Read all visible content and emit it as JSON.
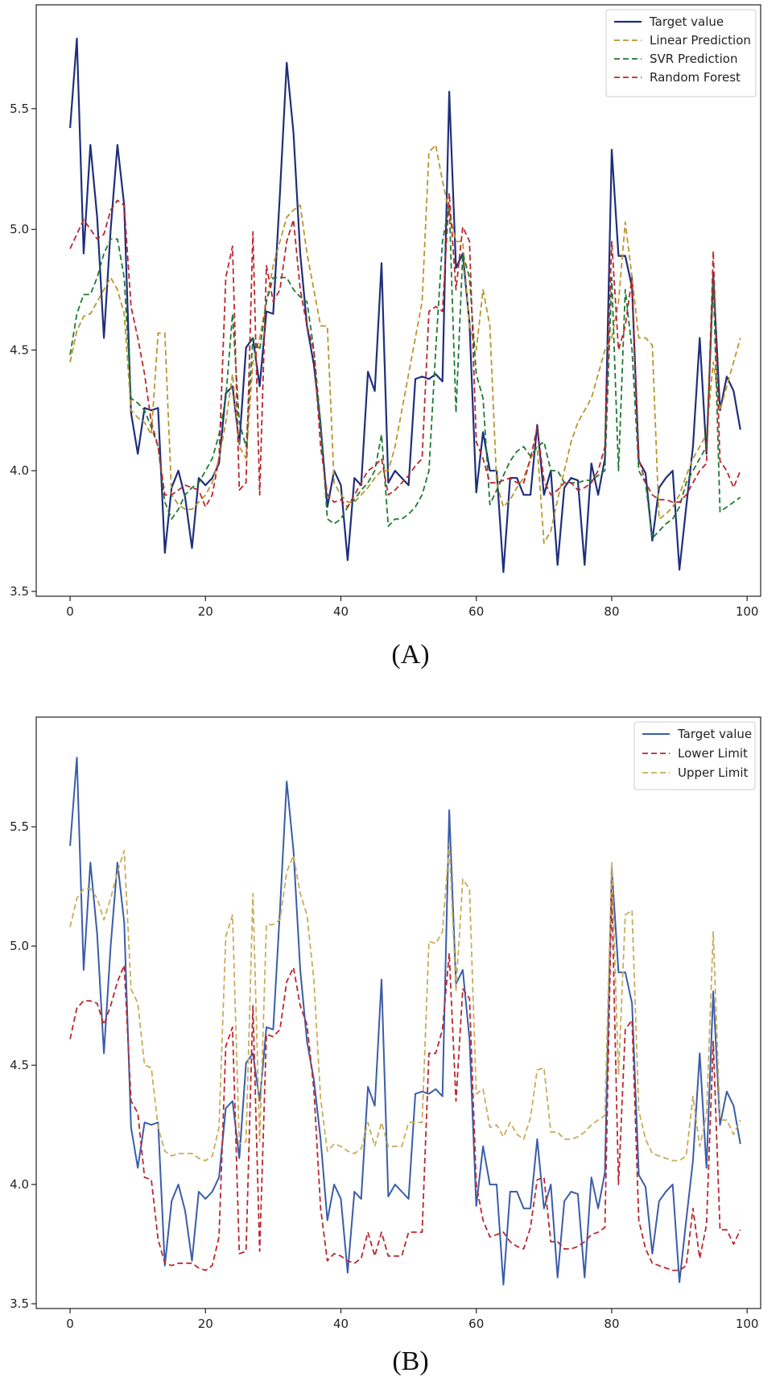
{
  "chart_data": [
    {
      "type": "line",
      "caption": "(A)",
      "xlim": [
        -5,
        102
      ],
      "ylim": [
        3.48,
        5.93
      ],
      "x_ticks": [
        0,
        20,
        40,
        60,
        80,
        100
      ],
      "y_ticks": [
        3.5,
        4.0,
        4.5,
        5.0,
        5.5
      ],
      "x_tick_labels": [
        "0",
        "20",
        "40",
        "60",
        "80",
        "100"
      ],
      "y_tick_labels": [
        "3.5",
        "4.0",
        "4.5",
        "5.0",
        "5.5"
      ],
      "legend_position": "top-right",
      "series": [
        {
          "name": "Target value",
          "color": "#1f2f7a",
          "dash": "solid",
          "values": [
            5.42,
            5.79,
            4.9,
            5.35,
            5.05,
            4.55,
            5.0,
            5.35,
            5.1,
            4.24,
            4.07,
            4.26,
            4.25,
            4.26,
            3.66,
            3.93,
            4.0,
            3.89,
            3.68,
            3.97,
            3.94,
            3.97,
            4.03,
            4.32,
            4.35,
            4.11,
            4.51,
            4.55,
            4.35,
            4.66,
            4.65,
            5.15,
            5.69,
            5.4,
            4.9,
            4.6,
            4.44,
            4.19,
            3.85,
            4.0,
            3.94,
            3.63,
            3.97,
            3.94,
            4.41,
            4.33,
            4.86,
            3.95,
            4.0,
            3.97,
            3.94,
            4.38,
            4.39,
            4.38,
            4.4,
            4.37,
            5.57,
            4.84,
            4.9,
            4.61,
            3.91,
            4.16,
            4.0,
            4.0,
            3.58,
            3.97,
            3.97,
            3.9,
            3.9,
            4.19,
            3.9,
            4.0,
            3.61,
            3.93,
            3.97,
            3.96,
            3.61,
            4.03,
            3.9,
            4.05,
            5.33,
            4.89,
            4.89,
            4.76,
            4.04,
            3.99,
            3.71,
            3.93,
            3.97,
            4.0,
            3.59,
            3.85,
            4.1,
            4.55,
            4.07,
            4.81,
            4.25,
            4.39,
            4.33,
            4.17
          ]
        },
        {
          "name": "Linear Prediction",
          "color": "#b8962e",
          "dash": "dashed",
          "values": [
            4.45,
            4.58,
            4.64,
            4.65,
            4.7,
            4.75,
            4.8,
            4.75,
            4.65,
            4.25,
            4.22,
            4.2,
            4.15,
            4.57,
            4.57,
            3.9,
            3.86,
            3.84,
            3.84,
            3.87,
            3.9,
            3.95,
            4.05,
            4.2,
            4.4,
            4.1,
            4.05,
            4.45,
            4.55,
            4.7,
            4.85,
            4.95,
            5.05,
            5.08,
            5.1,
            4.9,
            4.75,
            4.6,
            4.6,
            3.95,
            3.9,
            3.87,
            3.87,
            3.9,
            3.93,
            3.97,
            4.0,
            4.0,
            4.1,
            4.25,
            4.4,
            4.55,
            4.7,
            5.32,
            5.35,
            5.2,
            5.07,
            4.95,
            4.95,
            4.6,
            4.5,
            4.75,
            4.6,
            3.95,
            3.85,
            3.88,
            3.93,
            3.97,
            4.05,
            4.1,
            3.7,
            3.75,
            3.88,
            4.0,
            4.12,
            4.2,
            4.25,
            4.3,
            4.4,
            4.5,
            4.55,
            4.7,
            5.03,
            4.8,
            4.55,
            4.55,
            4.52,
            3.8,
            3.82,
            3.85,
            3.9,
            3.98,
            4.05,
            4.1,
            4.15,
            4.45,
            4.25,
            4.35,
            4.45,
            4.55
          ]
        },
        {
          "name": "SVR Prediction",
          "color": "#1e7a32",
          "dash": "dashed",
          "values": [
            4.48,
            4.65,
            4.73,
            4.73,
            4.8,
            4.9,
            4.96,
            4.96,
            4.8,
            4.3,
            4.28,
            4.25,
            4.18,
            4.1,
            3.87,
            3.8,
            3.84,
            3.9,
            3.93,
            3.95,
            4.0,
            4.05,
            4.15,
            4.3,
            4.65,
            4.2,
            4.1,
            4.55,
            4.5,
            4.7,
            4.8,
            4.8,
            4.8,
            4.75,
            4.72,
            4.7,
            4.5,
            4.2,
            3.8,
            3.78,
            3.8,
            3.85,
            3.88,
            3.92,
            3.95,
            4.0,
            4.15,
            3.77,
            3.8,
            3.8,
            3.82,
            3.85,
            3.9,
            4.0,
            4.5,
            4.95,
            5.1,
            4.24,
            4.9,
            4.8,
            4.4,
            4.3,
            3.86,
            3.92,
            3.98,
            4.04,
            4.08,
            4.1,
            4.06,
            4.1,
            4.12,
            4.0,
            4.0,
            3.95,
            3.95,
            3.95,
            3.96,
            3.96,
            3.98,
            4.0,
            4.8,
            4.0,
            4.75,
            4.5,
            4.0,
            3.95,
            3.72,
            3.75,
            3.78,
            3.8,
            3.85,
            3.95,
            4.0,
            4.05,
            4.1,
            4.8,
            3.83,
            3.85,
            3.87,
            3.89
          ]
        },
        {
          "name": "Random Forest",
          "color": "#b8282e",
          "dash": "dashed",
          "values": [
            4.92,
            4.98,
            5.04,
            5.0,
            4.96,
            4.98,
            5.08,
            5.12,
            5.1,
            4.68,
            4.55,
            4.4,
            4.2,
            4.1,
            3.9,
            3.9,
            3.92,
            3.94,
            3.93,
            3.92,
            3.85,
            3.9,
            4.05,
            4.8,
            4.93,
            3.92,
            3.95,
            4.99,
            3.9,
            4.85,
            4.7,
            4.75,
            4.95,
            5.04,
            4.75,
            4.6,
            4.5,
            4.1,
            3.9,
            3.87,
            3.88,
            3.85,
            3.9,
            3.95,
            4.0,
            4.02,
            4.05,
            3.9,
            3.92,
            3.95,
            3.98,
            4.02,
            4.05,
            4.66,
            4.68,
            4.66,
            5.15,
            4.75,
            5.01,
            4.95,
            4.12,
            4.05,
            3.95,
            3.95,
            3.96,
            3.97,
            3.95,
            3.95,
            4.05,
            4.18,
            3.96,
            3.9,
            3.92,
            3.95,
            3.95,
            3.92,
            3.93,
            3.95,
            4.0,
            4.1,
            4.95,
            4.5,
            4.6,
            4.8,
            4.05,
            3.95,
            3.9,
            3.88,
            3.88,
            3.87,
            3.87,
            3.9,
            3.95,
            4.0,
            4.03,
            4.91,
            4.04,
            4.0,
            3.93,
            4.0
          ]
        }
      ]
    },
    {
      "type": "line",
      "caption": "(B)",
      "xlim": [
        -5,
        102
      ],
      "ylim": [
        3.48,
        5.96
      ],
      "x_ticks": [
        0,
        20,
        40,
        60,
        80,
        100
      ],
      "y_ticks": [
        3.5,
        4.0,
        4.5,
        5.0,
        5.5
      ],
      "x_tick_labels": [
        "0",
        "20",
        "40",
        "60",
        "80",
        "100"
      ],
      "y_tick_labels": [
        "3.5",
        "4.0",
        "4.5",
        "5.0",
        "5.5"
      ],
      "legend_position": "top-right",
      "series": [
        {
          "name": "Target value",
          "color": "#3a5da8",
          "dash": "solid",
          "values": [
            5.42,
            5.79,
            4.9,
            5.35,
            5.05,
            4.55,
            5.0,
            5.35,
            5.1,
            4.24,
            4.07,
            4.26,
            4.25,
            4.26,
            3.66,
            3.93,
            4.0,
            3.89,
            3.68,
            3.97,
            3.94,
            3.97,
            4.03,
            4.32,
            4.35,
            4.11,
            4.51,
            4.55,
            4.35,
            4.66,
            4.65,
            5.15,
            5.69,
            5.4,
            4.9,
            4.6,
            4.44,
            4.19,
            3.85,
            4.0,
            3.94,
            3.63,
            3.97,
            3.94,
            4.41,
            4.33,
            4.86,
            3.95,
            4.0,
            3.97,
            3.94,
            4.38,
            4.39,
            4.38,
            4.4,
            4.37,
            5.57,
            4.84,
            4.9,
            4.61,
            3.91,
            4.16,
            4.0,
            4.0,
            3.58,
            3.97,
            3.97,
            3.9,
            3.9,
            4.19,
            3.9,
            4.0,
            3.61,
            3.93,
            3.97,
            3.96,
            3.61,
            4.03,
            3.9,
            4.05,
            5.33,
            4.89,
            4.89,
            4.76,
            4.04,
            3.99,
            3.71,
            3.93,
            3.97,
            4.0,
            3.59,
            3.85,
            4.1,
            4.55,
            4.07,
            4.81,
            4.25,
            4.39,
            4.33,
            4.17
          ]
        },
        {
          "name": "Lower Limit",
          "color": "#b8282e",
          "dash": "dashed",
          "values": [
            4.61,
            4.74,
            4.77,
            4.77,
            4.76,
            4.67,
            4.75,
            4.85,
            4.92,
            4.35,
            4.3,
            4.03,
            4.02,
            3.77,
            3.67,
            3.66,
            3.67,
            3.67,
            3.67,
            3.65,
            3.64,
            3.66,
            3.78,
            4.58,
            4.66,
            3.71,
            3.72,
            4.75,
            3.72,
            4.63,
            4.62,
            4.65,
            4.85,
            4.91,
            4.75,
            4.67,
            4.4,
            3.9,
            3.68,
            3.71,
            3.7,
            3.68,
            3.67,
            3.69,
            3.8,
            3.7,
            3.8,
            3.7,
            3.7,
            3.7,
            3.8,
            3.8,
            3.8,
            4.55,
            4.55,
            4.65,
            4.97,
            4.35,
            4.82,
            4.78,
            4.0,
            3.85,
            3.78,
            3.79,
            3.8,
            3.76,
            3.74,
            3.73,
            3.82,
            4.02,
            4.03,
            3.76,
            3.76,
            3.73,
            3.73,
            3.74,
            3.76,
            3.79,
            3.8,
            3.82,
            5.24,
            4.0,
            4.65,
            4.69,
            3.85,
            3.73,
            3.67,
            3.66,
            3.65,
            3.64,
            3.64,
            3.66,
            3.9,
            3.69,
            3.83,
            4.6,
            3.81,
            3.81,
            3.75,
            3.81
          ]
        },
        {
          "name": "Upper Limit",
          "color": "#c8ac5a",
          "dash": "dashed",
          "values": [
            5.08,
            5.2,
            5.24,
            5.24,
            5.2,
            5.11,
            5.2,
            5.31,
            5.4,
            4.82,
            4.76,
            4.5,
            4.49,
            4.24,
            4.14,
            4.12,
            4.13,
            4.13,
            4.13,
            4.11,
            4.1,
            4.12,
            4.24,
            5.04,
            5.13,
            4.17,
            4.18,
            5.22,
            4.18,
            5.09,
            5.09,
            5.11,
            5.31,
            5.38,
            5.22,
            5.13,
            4.86,
            4.36,
            4.14,
            4.17,
            4.16,
            4.14,
            4.13,
            4.15,
            4.26,
            4.16,
            4.26,
            4.16,
            4.16,
            4.16,
            4.26,
            4.26,
            4.26,
            5.02,
            5.01,
            5.06,
            5.43,
            4.81,
            5.28,
            5.24,
            4.38,
            4.4,
            4.24,
            4.25,
            4.2,
            4.26,
            4.21,
            4.19,
            4.28,
            4.48,
            4.49,
            4.22,
            4.22,
            4.19,
            4.19,
            4.2,
            4.22,
            4.25,
            4.27,
            4.29,
            5.35,
            4.46,
            5.13,
            5.15,
            4.31,
            4.19,
            4.13,
            4.12,
            4.11,
            4.1,
            4.1,
            4.12,
            4.37,
            4.16,
            4.29,
            5.06,
            4.27,
            4.27,
            4.21,
            4.27
          ]
        }
      ]
    }
  ]
}
